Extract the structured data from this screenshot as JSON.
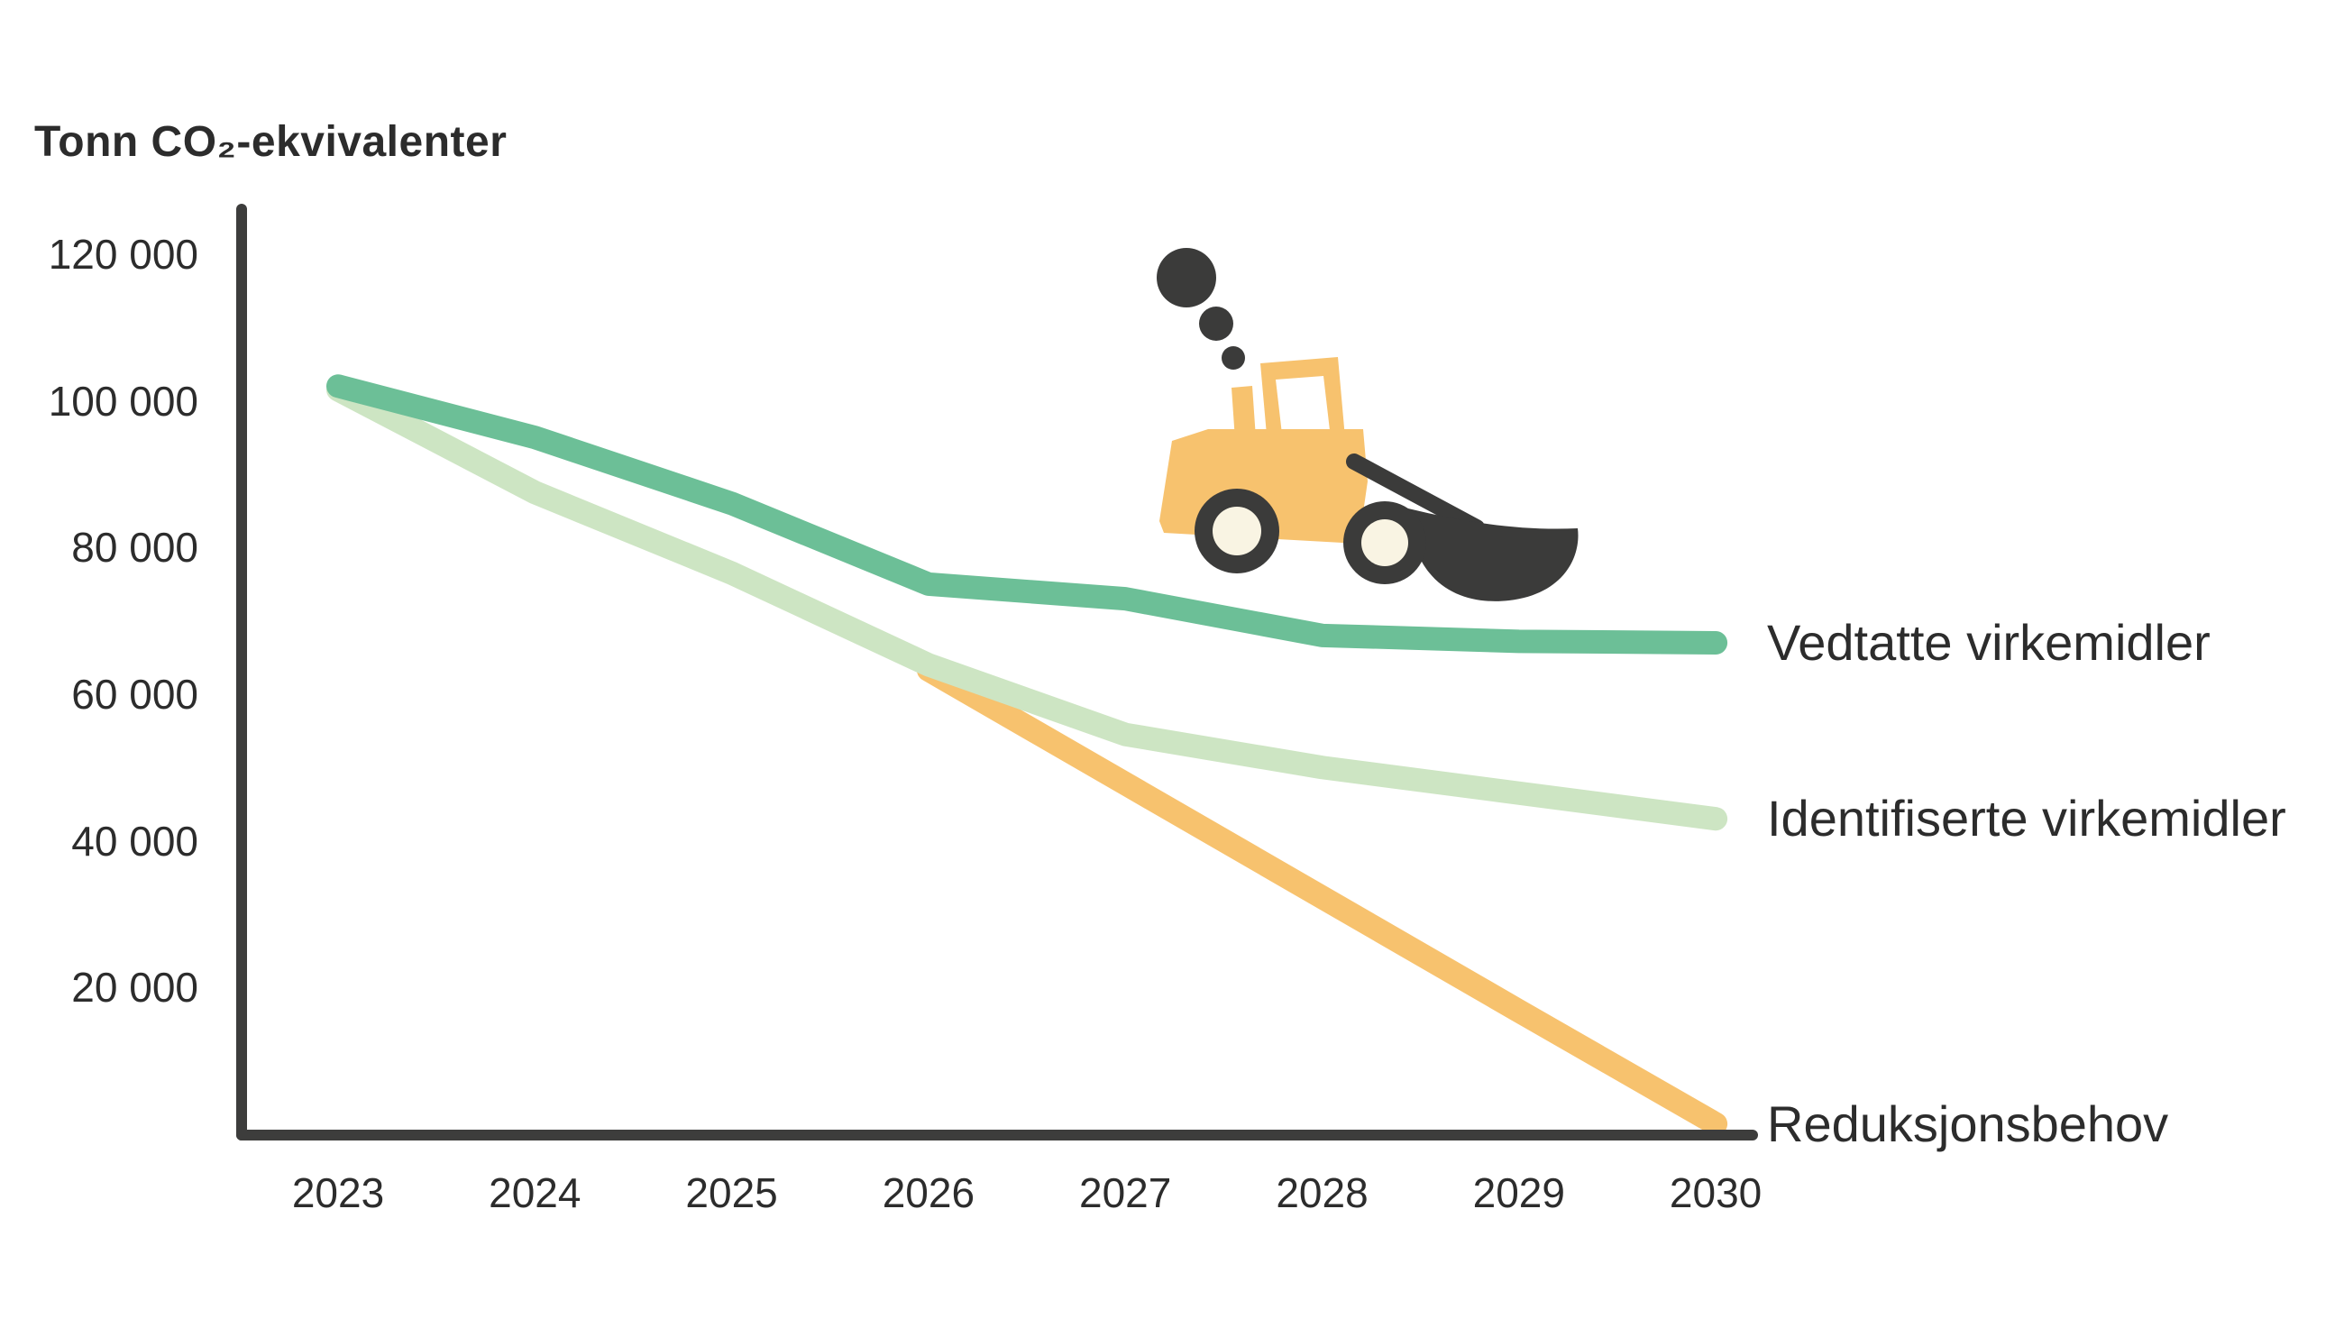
{
  "title": "Tonn CO₂-ekvivalenter",
  "colors": {
    "green": "#6cbf97",
    "lightgreen": "#cde5c3",
    "orange": "#f7c26e",
    "axis": "#3d3d3c",
    "dark": "#3b3b3a",
    "cream": "#f9f4e3",
    "text": "#2c2c2c",
    "white": "#ffffff"
  },
  "chart_data": {
    "type": "line",
    "title": "Tonn CO₂-ekvivalenter",
    "xlabel": "",
    "ylabel": "Tonn CO₂-ekvivalenter",
    "x": [
      2023,
      2024,
      2025,
      2026,
      2027,
      2028,
      2029,
      2030
    ],
    "xtick_labels": [
      "2023",
      "2024",
      "2025",
      "2026",
      "2027",
      "2028",
      "2029",
      "2030"
    ],
    "ylim": [
      0,
      126000
    ],
    "yticks": [
      20000,
      40000,
      60000,
      80000,
      100000,
      120000
    ],
    "ytick_labels": [
      "20 000",
      "40 000",
      "60 000",
      "80 000",
      "100 000",
      "120 000"
    ],
    "grid": false,
    "legend_position": "right-of-line-ends",
    "series": [
      {
        "name": "Vedtatte virkemidler",
        "color_key": "green",
        "points": [
          [
            2023,
            102000
          ],
          [
            2024,
            95000
          ],
          [
            2025,
            86000
          ],
          [
            2026,
            75000
          ],
          [
            2027,
            73000
          ],
          [
            2028,
            68000
          ],
          [
            2029,
            67200
          ],
          [
            2030,
            67000
          ]
        ]
      },
      {
        "name": "Identifiserte virkemidler",
        "color_key": "lightgreen",
        "points": [
          [
            2023,
            101500
          ],
          [
            2024,
            87500
          ],
          [
            2025,
            76500
          ],
          [
            2026,
            64000
          ],
          [
            2027,
            54500
          ],
          [
            2028,
            50000
          ],
          [
            2029,
            46500
          ],
          [
            2030,
            43000
          ]
        ]
      },
      {
        "name": "Reduksjonsbehov",
        "color_key": "orange",
        "points": [
          [
            2026,
            63300
          ],
          [
            2027,
            47800
          ],
          [
            2028,
            32300
          ],
          [
            2029,
            16800
          ],
          [
            2030,
            1400
          ]
        ]
      }
    ]
  },
  "illustration": {
    "name": "wheel-loader-with-exhaust-smoke",
    "body_color": "#f7c26e",
    "dark_color": "#3b3b3a",
    "hub_color": "#f9f4e3"
  }
}
